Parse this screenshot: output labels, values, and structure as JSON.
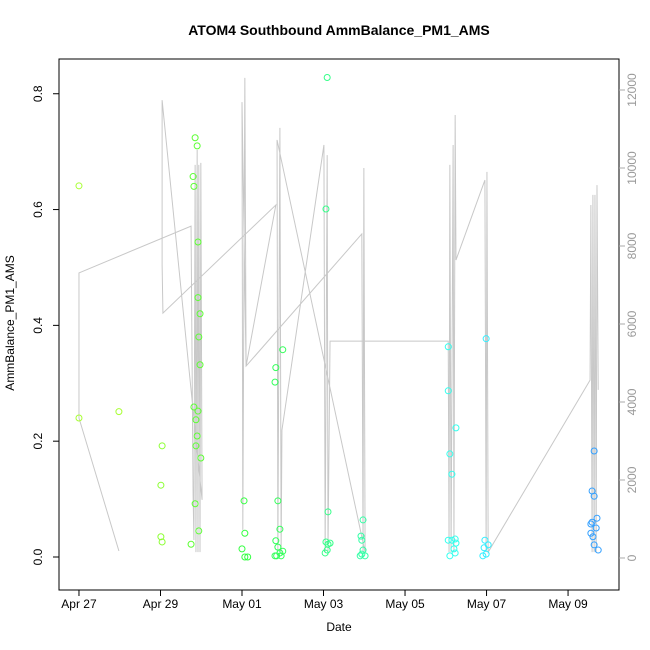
{
  "chart_data": {
    "type": "scatter",
    "title": "ATOM4 Southbound AmmBalance_PM1_AMS",
    "xlabel": "Date",
    "ylabel": "AmmBalance_PM1_AMS",
    "xlim": [
      -0.49,
      13.25
    ],
    "xticks": [
      {
        "value": 0,
        "label": "Apr 27"
      },
      {
        "value": 2,
        "label": "Apr 29"
      },
      {
        "value": 4,
        "label": "May 01"
      },
      {
        "value": 6,
        "label": "May 03"
      },
      {
        "value": 8,
        "label": "May 05"
      },
      {
        "value": 10,
        "label": "May 07"
      },
      {
        "value": 12,
        "label": "May 09"
      }
    ],
    "ylim": [
      -0.057,
      0.86
    ],
    "yticks": [
      {
        "value": 0,
        "label": "0.0"
      },
      0.2,
      0.4,
      0.6,
      0.8
    ],
    "y2lim": [
      -821,
      12795
    ],
    "y2ticks": [
      0,
      2000,
      4000,
      6000,
      8000,
      10000,
      12000
    ],
    "series": [
      {
        "kind": "line",
        "axis": "y2",
        "color": "#c8c8c8",
        "x": [
          0.98,
          0,
          0,
          2.75,
          2.8,
          2.82,
          2.85,
          2.87,
          2.9,
          2.92,
          2.94,
          2.97,
          2.99,
          3.02,
          2.04,
          2.04,
          2.06,
          4.83,
          4.1,
          4.0,
          4.02,
          4.07,
          4.1,
          6.94,
          6.97,
          6.99,
          7.02,
          4.86,
          4.88,
          4.93,
          4.96,
          4.98,
          6.01,
          6.04,
          6.09,
          6.11,
          6.16,
          9.06,
          9.08,
          9.1,
          9.13,
          9.18,
          9.2,
          9.23,
          9.25,
          9.96,
          9.99,
          10.01,
          10.04,
          12.54,
          12.56,
          12.59,
          12.61,
          12.64,
          12.66,
          12.69,
          12.71,
          12.74
        ],
        "values": [
          180,
          3590,
          7310,
          8510,
          1620,
          460,
          10080,
          150,
          10460,
          150,
          10080,
          150,
          10130,
          1490,
          11740,
          7510,
          6280,
          9050,
          4920,
          11690,
          720,
          12310,
          4920,
          8310,
          150,
          10000,
          150,
          10720,
          150,
          11030,
          150,
          3280,
          10590,
          150,
          10330,
          150,
          5560,
          5560,
          150,
          10080,
          150,
          10590,
          150,
          11360,
          7640,
          9690,
          150,
          9900,
          150,
          4560,
          9050,
          150,
          9310,
          150,
          9310,
          150,
          9560,
          4310
        ]
      },
      {
        "kind": "points",
        "color": "#a8ff33",
        "x": [
          0,
          0,
          0.98
        ],
        "values": [
          0.641,
          0.24,
          0.251
        ]
      },
      {
        "kind": "points",
        "color": "#8cff33",
        "x": [
          2.04,
          2.01,
          2.01,
          2.04
        ],
        "values": [
          0.192,
          0.124,
          0.035,
          0.026
        ]
      },
      {
        "kind": "points",
        "color": "#5cff33",
        "x": [
          2.8,
          2.82,
          2.85,
          2.9,
          2.92,
          2.92,
          2.97,
          2.94,
          2.97,
          2.82,
          2.87,
          2.92,
          2.9,
          2.87,
          2.99,
          2.85,
          2.94,
          2.75
        ],
        "values": [
          0.657,
          0.64,
          0.724,
          0.71,
          0.544,
          0.448,
          0.42,
          0.38,
          0.332,
          0.259,
          0.237,
          0.252,
          0.209,
          0.192,
          0.171,
          0.092,
          0.045,
          0.022
        ]
      },
      {
        "kind": "points",
        "color": "#33ff40",
        "x": [
          4.05,
          4.07,
          4.0,
          4.07,
          4.14
        ],
        "values": [
          0.097,
          0.041,
          0.014,
          0,
          0
        ]
      },
      {
        "kind": "points",
        "color": "#33ff5a",
        "x": [
          4.83,
          4.81,
          5.0,
          4.88,
          4.93,
          4.83,
          4.88,
          4.93,
          4.85,
          4.96,
          5.0,
          4.81
        ],
        "values": [
          0.327,
          0.302,
          0.358,
          0.097,
          0.048,
          0.028,
          0.017,
          0.007,
          0.002,
          0.002,
          0.01,
          0.002
        ]
      },
      {
        "kind": "points",
        "color": "#33ff88",
        "x": [
          6.09,
          6.06,
          6.11,
          6.06,
          6.11,
          6.16,
          6.04,
          6.09
        ],
        "values": [
          0.828,
          0.601,
          0.078,
          0.026,
          0.022,
          0.024,
          0.007,
          0.012
        ]
      },
      {
        "kind": "points",
        "color": "#33ffa6",
        "x": [
          6.97,
          6.92,
          6.94,
          6.97,
          6.94,
          7.02,
          6.9
        ],
        "values": [
          0.064,
          0.036,
          0.029,
          0.012,
          0.005,
          0.002,
          0.002
        ]
      },
      {
        "kind": "points",
        "color": "#33ffee",
        "x": [
          9.06,
          9.06,
          9.1,
          9.15,
          9.25,
          9.06,
          9.15,
          9.23,
          9.25,
          9.2,
          9.23,
          9.1
        ],
        "values": [
          0.363,
          0.287,
          0.178,
          0.143,
          0.223,
          0.029,
          0.029,
          0.031,
          0.024,
          0.014,
          0.007,
          0.002
        ]
      },
      {
        "kind": "points",
        "color": "#33eeff",
        "x": [
          9.99,
          9.96,
          10.04,
          9.94,
          9.99,
          9.91
        ],
        "values": [
          0.377,
          0.029,
          0.021,
          0.016,
          0.005,
          0.002
        ]
      },
      {
        "kind": "points",
        "color": "#33a0ff",
        "x": [
          12.64,
          12.59,
          12.64,
          12.71,
          12.59,
          12.56,
          12.69,
          12.56,
          12.61,
          12.64,
          12.74
        ],
        "values": [
          0.183,
          0.114,
          0.105,
          0.067,
          0.06,
          0.057,
          0.05,
          0.041,
          0.035,
          0.021,
          0.012
        ]
      }
    ]
  }
}
